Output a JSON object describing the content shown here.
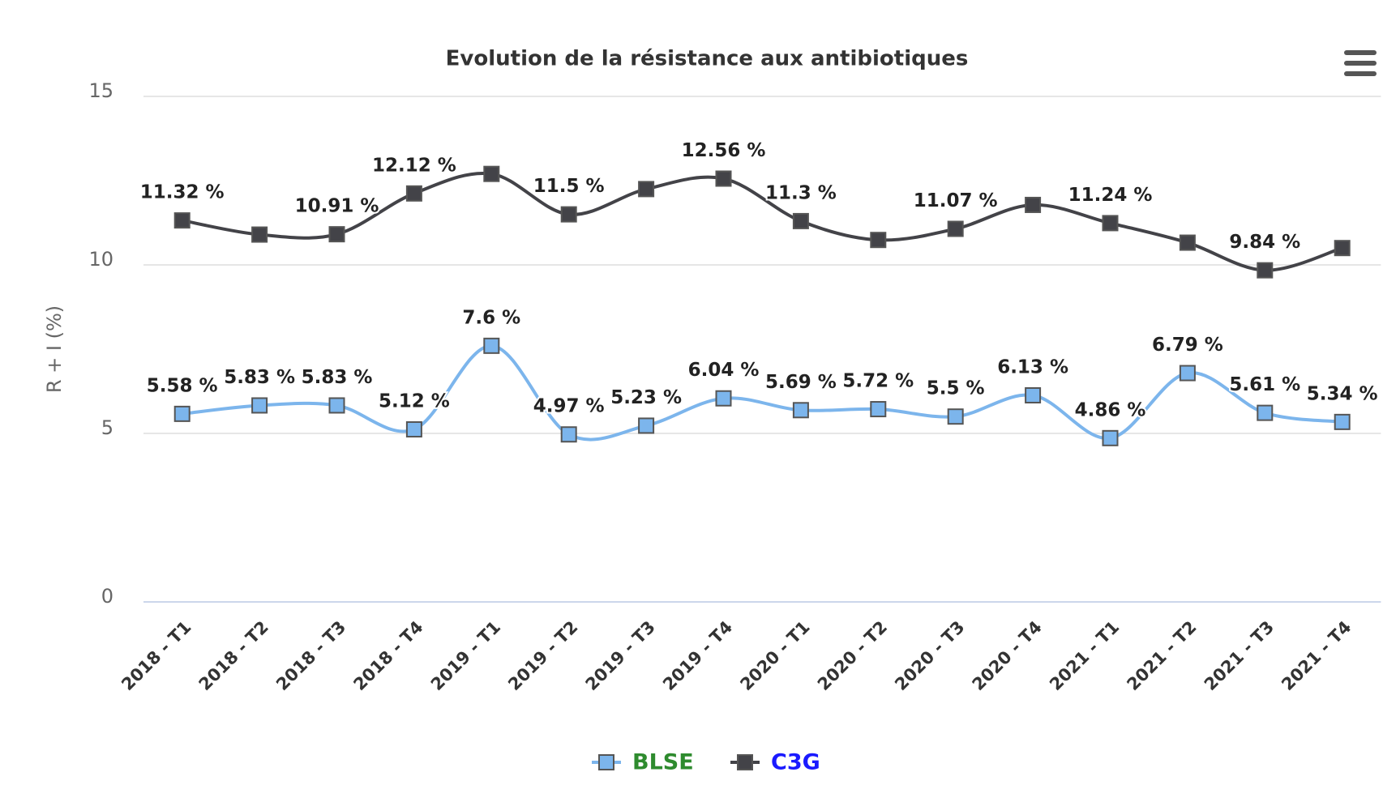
{
  "chart_data": {
    "type": "line",
    "title": "Evolution de la résistance aux antibiotiques",
    "y_label": "R + I (%)",
    "categories": [
      "2018 - T1",
      "2018 - T2",
      "2018 - T3",
      "2018 - T4",
      "2019 - T1",
      "2019 - T2",
      "2019 - T3",
      "2019 - T4",
      "2020 - T1",
      "2020 - T2",
      "2020 - T3",
      "2020 - T4",
      "2021 - T1",
      "2021 - T2",
      "2021 - T3",
      "2021 - T4"
    ],
    "series": [
      {
        "name": "BLSE",
        "color": "#7cb5ec",
        "label_color": "#2e8b2e",
        "values": [
          5.58,
          5.83,
          5.83,
          5.12,
          7.6,
          4.97,
          5.23,
          6.04,
          5.69,
          5.72,
          5.5,
          6.13,
          4.86,
          6.79,
          5.61,
          5.34
        ],
        "value_labels": [
          "5.58 %",
          "5.83 %",
          "5.83 %",
          "5.12 %",
          "7.6 %",
          "4.97 %",
          "5.23 %",
          "6.04 %",
          "5.69 %",
          "5.72 %",
          "5.5 %",
          "6.13 %",
          "4.86 %",
          "6.79 %",
          "5.61 %",
          "5.34 %"
        ]
      },
      {
        "name": "C3G",
        "color": "#434348",
        "label_color": "#1a1aff",
        "values": [
          11.32,
          10.9,
          10.91,
          12.12,
          12.7,
          11.5,
          12.25,
          12.56,
          11.3,
          10.74,
          11.07,
          11.78,
          11.24,
          10.66,
          9.84,
          10.5
        ],
        "value_labels": [
          "11.32 %",
          null,
          "10.91 %",
          "12.12 %",
          null,
          "11.5 %",
          null,
          "12.56 %",
          "11.3 %",
          null,
          "11.07 %",
          null,
          "11.24 %",
          null,
          "9.84 %",
          null
        ]
      }
    ],
    "ylim": [
      0,
      15
    ],
    "yticks": [
      0,
      5,
      10,
      15
    ],
    "grid": true,
    "legend": "bottom"
  }
}
